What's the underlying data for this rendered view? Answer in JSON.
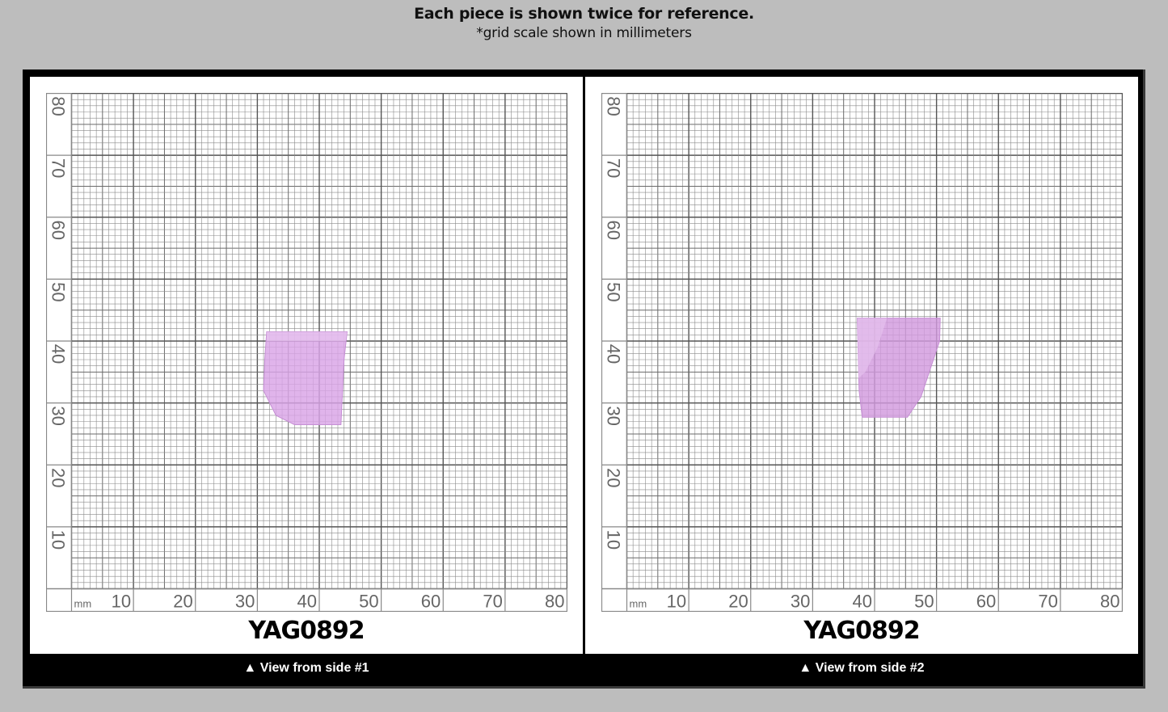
{
  "header": {
    "title": "Each piece is shown twice for reference.",
    "subtitle": "*grid scale shown in millimeters"
  },
  "grid": {
    "unit_label": "mm",
    "x_ticks": [
      "10",
      "20",
      "30",
      "40",
      "50",
      "60",
      "70",
      "80"
    ],
    "y_ticks": [
      "80",
      "70",
      "60",
      "50",
      "40",
      "30",
      "20",
      "10"
    ]
  },
  "panels": [
    {
      "id": "side-1",
      "sample_id": "YAG0892",
      "caption": "▲ View from side #1",
      "stone_color": "#d9a3e6"
    },
    {
      "id": "side-2",
      "sample_id": "YAG0892",
      "caption": "▲ View from side #2",
      "stone_color": "#d29ade"
    }
  ],
  "colors": {
    "background": "#bdbdbd",
    "frame": "#000000",
    "panel": "#ffffff",
    "grid_line": "#555555",
    "stone": "#d9a3e6"
  }
}
